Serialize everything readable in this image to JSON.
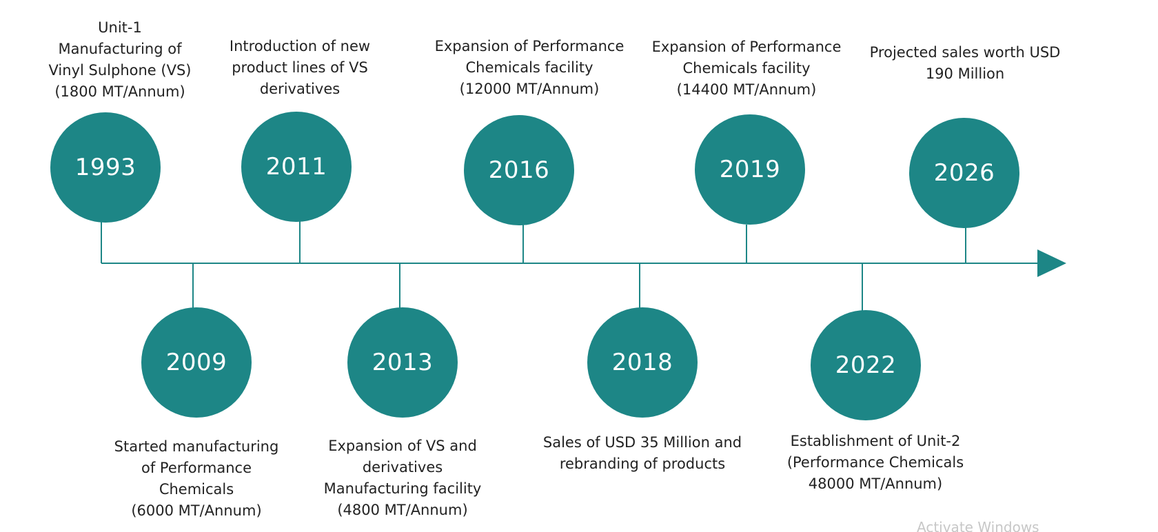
{
  "accent_color": "#1d8686",
  "milestones": [
    {
      "year": "1993",
      "lines": [
        "Unit-1",
        "Manufacturing of",
        "Vinyl Sulphone (VS)",
        "(1800 MT/Annum)"
      ]
    },
    {
      "year": "2009",
      "lines": [
        "Started manufacturing",
        "of Performance",
        "Chemicals",
        "(6000 MT/Annum)"
      ]
    },
    {
      "year": "2011",
      "lines": [
        "Introduction of new",
        "product lines of VS",
        "derivatives"
      ]
    },
    {
      "year": "2013",
      "lines": [
        "Expansion of VS and",
        "derivatives",
        "Manufacturing facility",
        "(4800 MT/Annum)"
      ]
    },
    {
      "year": "2016",
      "lines": [
        "Expansion of Performance",
        "Chemicals facility",
        "(12000 MT/Annum)"
      ]
    },
    {
      "year": "2018",
      "lines": [
        "Sales of USD 35 Million and",
        "rebranding of products"
      ]
    },
    {
      "year": "2019",
      "lines": [
        "Expansion of Performance",
        "Chemicals facility",
        "(14400 MT/Annum)"
      ]
    },
    {
      "year": "2022",
      "lines": [
        "Establishment of Unit-2",
        "(Performance Chemicals",
        "48000 MT/Annum)"
      ]
    },
    {
      "year": "2026",
      "lines": [
        "Projected sales worth USD",
        "190 Million"
      ]
    }
  ],
  "watermark": "Activate Windows"
}
